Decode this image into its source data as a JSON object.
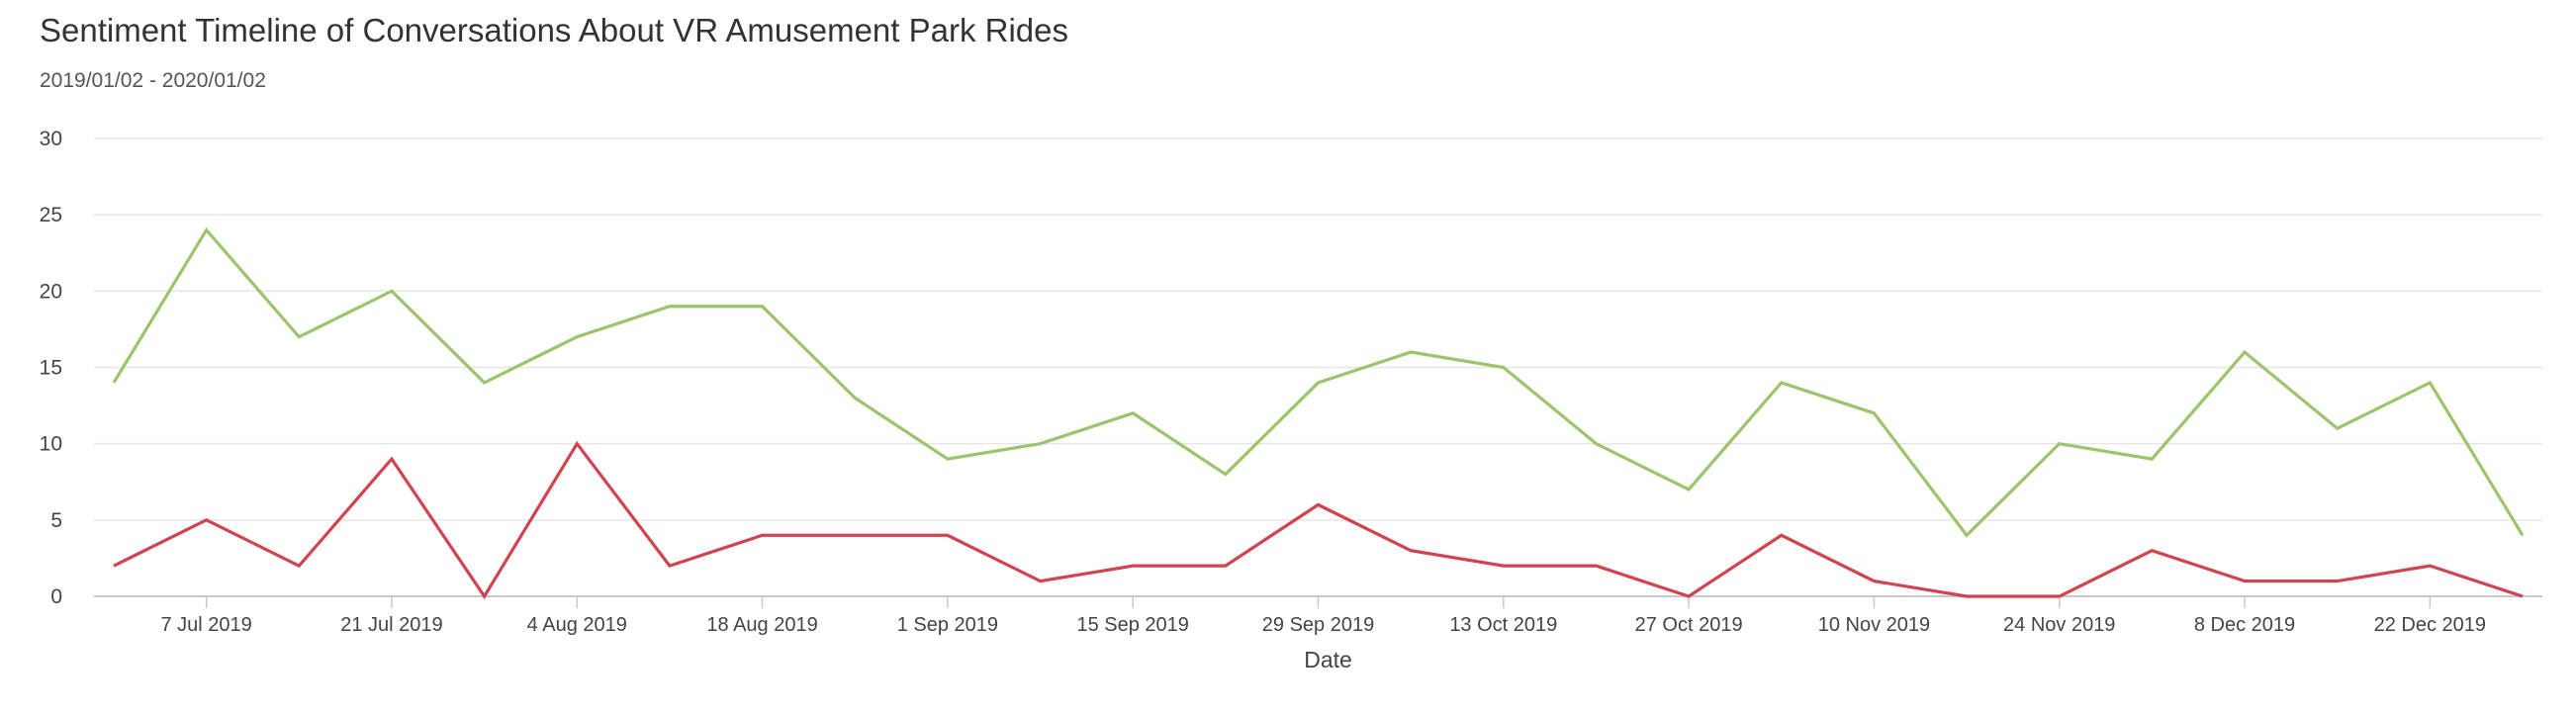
{
  "header": {
    "title": "Sentiment Timeline of Conversations About VR Amusement Park Rides",
    "subtitle": "2019/01/02 - 2020/01/02"
  },
  "chart_data": {
    "type": "line",
    "xlabel": "Date",
    "ylabel": "",
    "ylim": [
      0,
      30
    ],
    "yticks": [
      0,
      5,
      10,
      15,
      20,
      25,
      30
    ],
    "grid": true,
    "x": [
      "2019-06-30",
      "2019-07-07",
      "2019-07-14",
      "2019-07-21",
      "2019-07-28",
      "2019-08-04",
      "2019-08-11",
      "2019-08-18",
      "2019-08-25",
      "2019-09-01",
      "2019-09-08",
      "2019-09-15",
      "2019-09-22",
      "2019-09-29",
      "2019-10-06",
      "2019-10-13",
      "2019-10-20",
      "2019-10-27",
      "2019-11-03",
      "2019-11-10",
      "2019-11-17",
      "2019-11-24",
      "2019-12-01",
      "2019-12-08",
      "2019-12-15",
      "2019-12-22",
      "2019-12-29"
    ],
    "xticks": [
      {
        "date": "2019-07-07",
        "label": "7 Jul 2019"
      },
      {
        "date": "2019-07-21",
        "label": "21 Jul 2019"
      },
      {
        "date": "2019-08-04",
        "label": "4 Aug 2019"
      },
      {
        "date": "2019-08-18",
        "label": "18 Aug 2019"
      },
      {
        "date": "2019-09-01",
        "label": "1 Sep 2019"
      },
      {
        "date": "2019-09-15",
        "label": "15 Sep 2019"
      },
      {
        "date": "2019-09-29",
        "label": "29 Sep 2019"
      },
      {
        "date": "2019-10-13",
        "label": "13 Oct 2019"
      },
      {
        "date": "2019-10-27",
        "label": "27 Oct 2019"
      },
      {
        "date": "2019-11-10",
        "label": "10 Nov 2019"
      },
      {
        "date": "2019-11-24",
        "label": "24 Nov 2019"
      },
      {
        "date": "2019-12-08",
        "label": "8 Dec 2019"
      },
      {
        "date": "2019-12-22",
        "label": "22 Dec 2019"
      }
    ],
    "series": [
      {
        "color": "#9cc56b",
        "values": [
          14,
          24,
          17,
          20,
          14,
          17,
          19,
          19,
          13,
          9,
          10,
          12,
          8,
          14,
          16,
          15,
          10,
          7,
          14,
          12,
          4,
          10,
          9,
          16,
          11,
          14,
          4
        ]
      },
      {
        "color": "#d0434f",
        "values": [
          2,
          5,
          2,
          9,
          0,
          10,
          2,
          4,
          4,
          4,
          1,
          2,
          2,
          6,
          3,
          2,
          2,
          0,
          4,
          1,
          0,
          0,
          3,
          1,
          1,
          2,
          0
        ]
      }
    ]
  }
}
